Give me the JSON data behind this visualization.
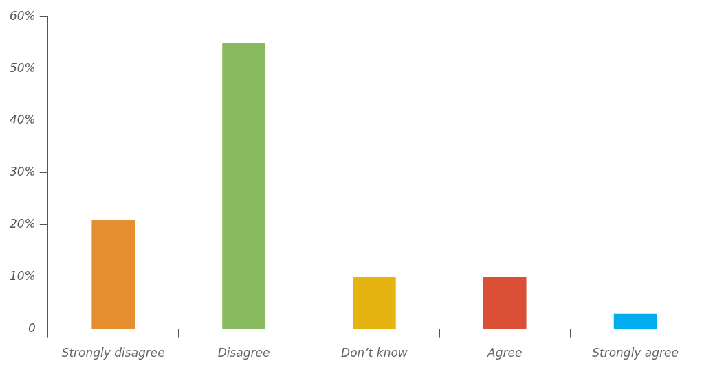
{
  "chart_data": {
    "type": "bar",
    "categories": [
      "Strongly disagree",
      "Disagree",
      "Don’t know",
      "Agree",
      "Strongly agree"
    ],
    "values": [
      21,
      55,
      10,
      10,
      3
    ],
    "colors": [
      "#e58e2f",
      "#8aba60",
      "#e6b411",
      "#dc4f37",
      "#00aeef"
    ],
    "ylim": [
      0,
      60
    ],
    "yticks": [
      0,
      {
        "value": 10,
        "label": "10%"
      },
      {
        "value": 20,
        "label": "20%"
      },
      {
        "value": 30,
        "label": "30%"
      },
      {
        "value": 40,
        "label": "40%"
      },
      {
        "value": 50,
        "label": "50%"
      },
      {
        "value": 60,
        "label": "60%"
      }
    ],
    "grid": false,
    "legend": false
  }
}
